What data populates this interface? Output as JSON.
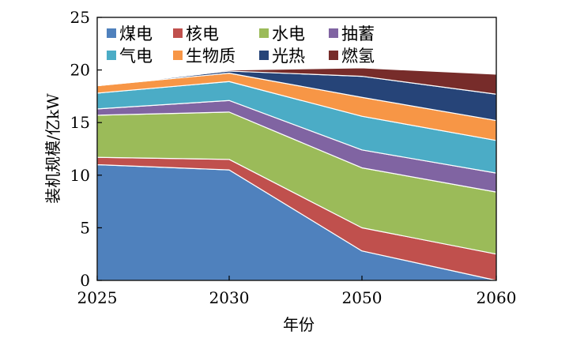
{
  "chart_data": {
    "type": "area",
    "stacked": true,
    "title": "",
    "xlabel": "年份",
    "ylabel": "装机规模/亿kW",
    "categories": [
      "2025",
      "2030",
      "2050",
      "2060"
    ],
    "ylim": [
      0,
      25
    ],
    "yticks": [
      0,
      5,
      10,
      15,
      20,
      25
    ],
    "legend_position": "top",
    "series": [
      {
        "name": "煤电",
        "color": "#4F81BD",
        "values": [
          11.0,
          10.5,
          2.8,
          0.0
        ]
      },
      {
        "name": "核电",
        "color": "#C0504D",
        "values": [
          0.7,
          1.0,
          2.2,
          2.5
        ]
      },
      {
        "name": "水电",
        "color": "#9BBB59",
        "values": [
          4.0,
          4.5,
          5.7,
          5.9
        ]
      },
      {
        "name": "抽蓄",
        "color": "#8064A2",
        "values": [
          0.6,
          1.1,
          1.7,
          1.8
        ]
      },
      {
        "name": "气电",
        "color": "#4BACC6",
        "values": [
          1.5,
          1.8,
          3.2,
          3.1
        ]
      },
      {
        "name": "生物质",
        "color": "#F79646",
        "values": [
          0.7,
          0.8,
          1.8,
          1.9
        ]
      },
      {
        "name": "光热",
        "color": "#264478",
        "values": [
          0.0,
          0.2,
          2.0,
          2.5
        ]
      },
      {
        "name": "燃氢",
        "color": "#772C2A",
        "values": [
          0.0,
          0.1,
          0.8,
          1.9
        ]
      }
    ]
  }
}
